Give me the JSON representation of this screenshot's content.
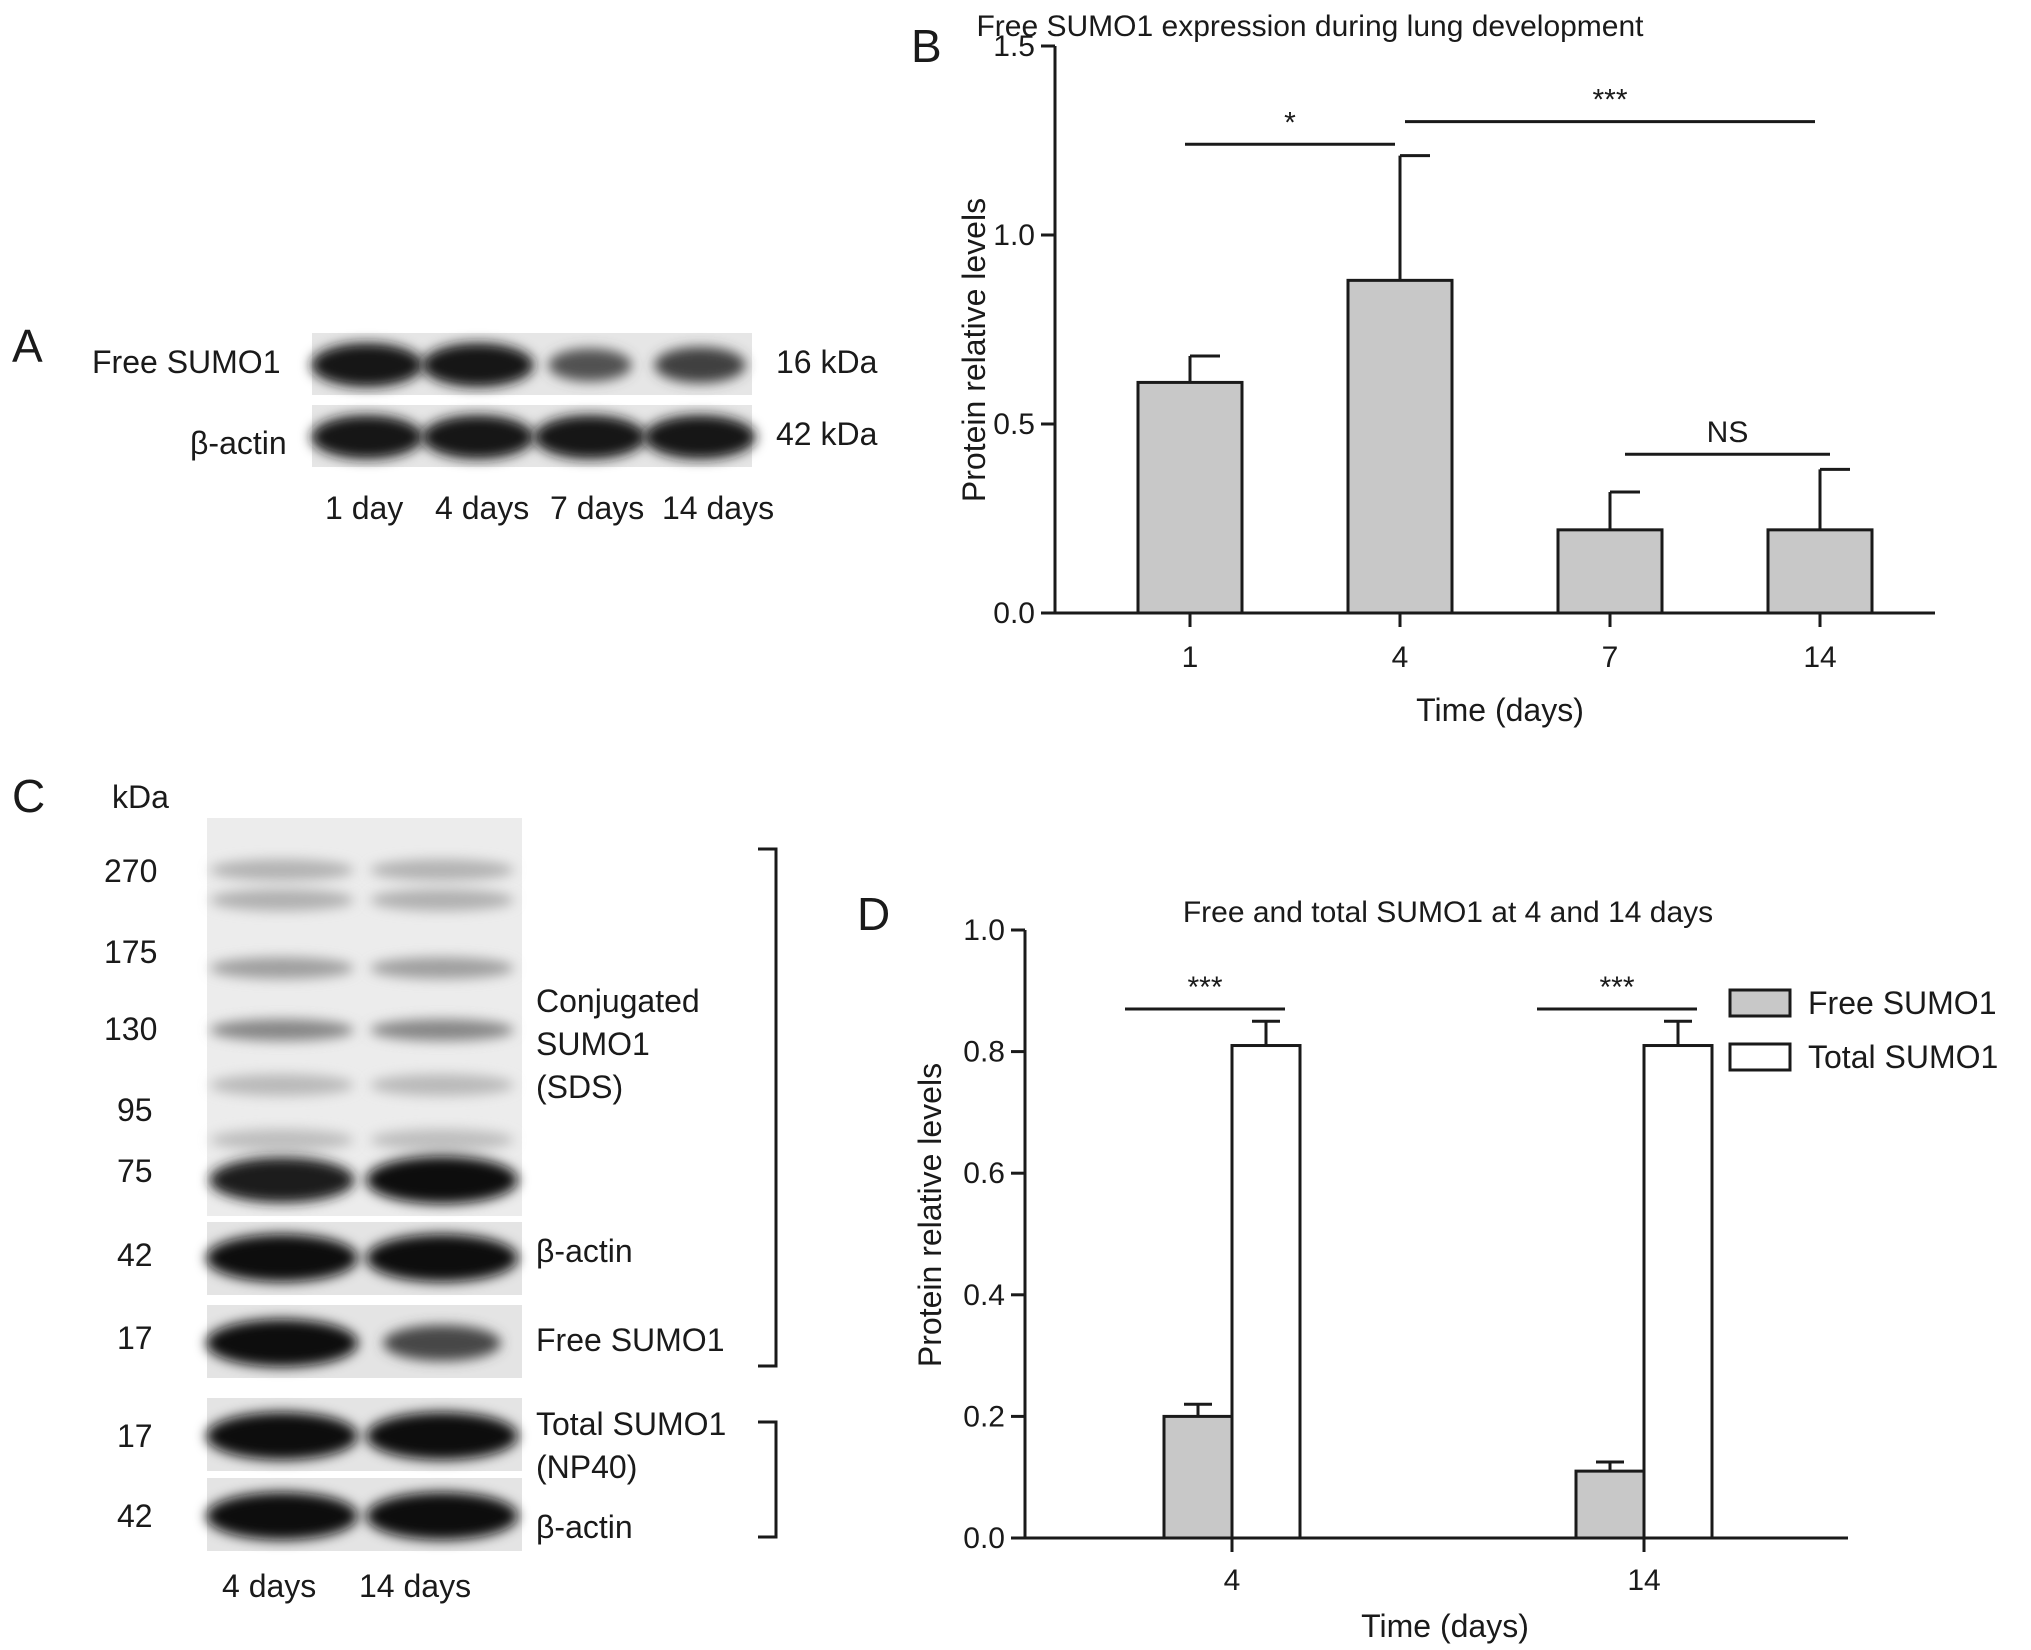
{
  "panels": {
    "A": {
      "letter": "A",
      "rows": [
        {
          "label": "Free SUMO1",
          "kda": "16 kDa",
          "intensities": [
            1.0,
            1.0,
            0.45,
            0.6
          ]
        },
        {
          "label": "β-actin",
          "kda": "42 kDa",
          "intensities": [
            1.0,
            1.0,
            1.0,
            1.0
          ]
        }
      ],
      "lanes": [
        "1 day",
        "4 days",
        "7 days",
        "14 days"
      ]
    },
    "C": {
      "letter": "C",
      "unit": "kDa",
      "markers": [
        "270",
        "175",
        "130",
        "95",
        "75",
        "42",
        "17",
        "17",
        "42"
      ],
      "right_labels": {
        "conjugated": [
          "Conjugated",
          "SUMO1",
          "(SDS)"
        ],
        "actin_top": "β-actin",
        "free": "Free SUMO1",
        "total": [
          "Total SUMO1",
          "(NP40)"
        ],
        "actin_bottom": "β-actin"
      },
      "lanes": [
        "4 days",
        "14 days"
      ]
    },
    "B": {
      "letter": "B"
    },
    "D": {
      "letter": "D"
    }
  },
  "chart_data": [
    {
      "id": "B",
      "type": "bar",
      "title": "Free SUMO1 expression during lung development",
      "xlabel": "Time (days)",
      "ylabel": "Protein relative levels",
      "ylim": [
        0,
        1.5
      ],
      "yticks": [
        "0.0",
        "0.5",
        "1.0",
        "1.5"
      ],
      "yticks_values": [
        0,
        0.5,
        1.0,
        1.5
      ],
      "categories": [
        "1",
        "4",
        "7",
        "14"
      ],
      "values": [
        0.61,
        0.88,
        0.22,
        0.22
      ],
      "errors": [
        0.07,
        0.33,
        0.1,
        0.16
      ],
      "bar_color": "#c8c8c8",
      "significance": [
        {
          "label": "*",
          "from": "1",
          "to": "4",
          "y": 1.24
        },
        {
          "label": "***",
          "from": "4",
          "to": "14",
          "y": 1.3
        },
        {
          "label": "NS",
          "from": "7",
          "to": "14",
          "y": 0.42
        }
      ]
    },
    {
      "id": "D",
      "type": "bar",
      "title": "Free and total SUMO1 at 4 and 14 days",
      "xlabel": "Time (days)",
      "ylabel": "Protein relative levels",
      "ylim": [
        0,
        1.0
      ],
      "yticks": [
        "0.0",
        "0.2",
        "0.4",
        "0.6",
        "0.8",
        "1.0"
      ],
      "yticks_values": [
        0,
        0.2,
        0.4,
        0.6,
        0.8,
        1.0
      ],
      "categories": [
        "4",
        "14"
      ],
      "series": [
        {
          "name": "Free SUMO1",
          "values": [
            0.2,
            0.11
          ],
          "errors": [
            0.02,
            0.015
          ],
          "color": "#c8c8c8"
        },
        {
          "name": "Total SUMO1",
          "values": [
            0.81,
            0.81
          ],
          "errors": [
            0.04,
            0.04
          ],
          "color": "#ffffff"
        }
      ],
      "legend": "top-right",
      "significance": [
        {
          "label": "***",
          "category": "4",
          "y": 0.87
        },
        {
          "label": "***",
          "category": "14",
          "y": 0.87
        }
      ]
    }
  ]
}
